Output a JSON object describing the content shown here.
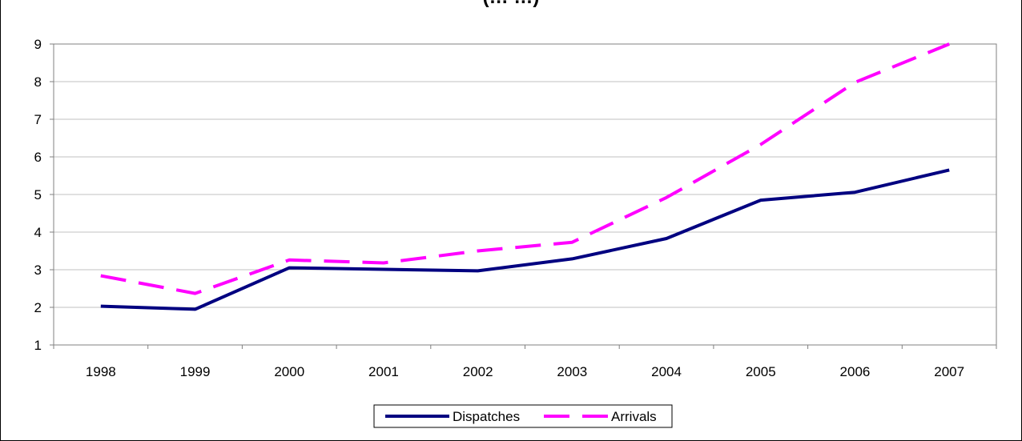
{
  "chart_data": {
    "type": "line",
    "title": "(… …)",
    "x": [
      "1998",
      "1999",
      "2000",
      "2001",
      "2002",
      "2003",
      "2004",
      "2005",
      "2006",
      "2007"
    ],
    "ylim": [
      1,
      9
    ],
    "yticks": [
      "1",
      "2",
      "3",
      "4",
      "5",
      "6",
      "7",
      "8",
      "9"
    ],
    "grid": true,
    "legend": "bottom",
    "series": [
      {
        "name": "Dispatches",
        "color": "#000080",
        "style": "solid",
        "values": [
          2.03,
          1.95,
          3.05,
          3.01,
          2.97,
          3.29,
          3.83,
          4.85,
          5.06,
          5.65
        ]
      },
      {
        "name": "Arrivals",
        "color": "#ff00ff",
        "style": "dashed",
        "values": [
          2.84,
          2.37,
          3.26,
          3.18,
          3.5,
          3.73,
          4.92,
          6.33,
          7.98,
          9.0
        ]
      }
    ]
  }
}
